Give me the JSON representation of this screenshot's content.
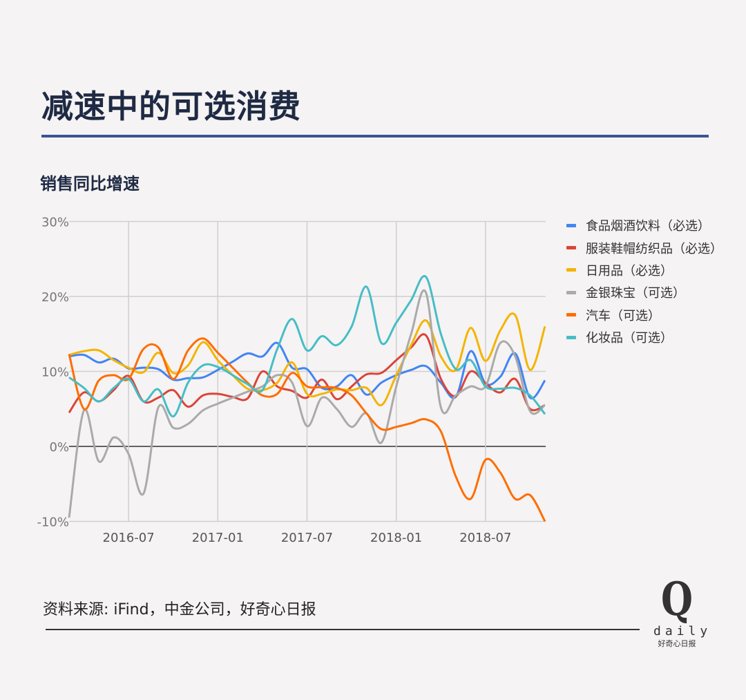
{
  "header": {
    "title": "减速中的可选消费",
    "subtitle": "销售同比增速"
  },
  "footer": {
    "source": "资料来源: iFind，中金公司，好奇心日报"
  },
  "logo": {
    "mark": "Q",
    "word": "daily",
    "cn": "好奇心日报"
  },
  "chart_data": {
    "type": "line",
    "title": "",
    "xlabel": "",
    "ylabel": "",
    "x_start": "2016-03",
    "x_end": "2018-11",
    "x_frequency": "monthly",
    "x_tick_labels": [
      "2016-07",
      "2017-01",
      "2017-07",
      "2018-01",
      "2018-07"
    ],
    "y_tick_labels": [
      "30%",
      "20%",
      "10%",
      "0%",
      "-10%"
    ],
    "ylim": [
      -10,
      30
    ],
    "grid": true,
    "legend_position": "right",
    "series": [
      {
        "name": "食品烟酒饮料（必选）",
        "color": "#4285f4",
        "values": [
          12,
          12.2,
          11.2,
          11.7,
          10.4,
          10.5,
          10.3,
          8.9,
          9.1,
          9.2,
          10.2,
          11.3,
          12.4,
          12,
          13.8,
          10.5,
          10.3,
          7.8,
          8,
          9.5,
          6.9,
          8.5,
          9.5,
          10.2,
          10.7,
          8.5,
          6.6,
          12.7,
          8.4,
          9.3,
          12.4,
          6.5,
          8.8
        ]
      },
      {
        "name": "服装鞋帽纺织品（必选）",
        "color": "#db4437",
        "values": [
          4.5,
          7.2,
          6,
          7.5,
          9.4,
          6,
          6.5,
          7.5,
          5.3,
          6.8,
          7,
          6.6,
          6.4,
          10,
          8,
          7.4,
          6.5,
          8.9,
          6.3,
          8,
          9.6,
          9.8,
          11.5,
          13.2,
          14.8,
          9,
          6.7,
          10,
          8.4,
          7.2,
          9,
          5,
          5.5
        ]
      },
      {
        "name": "日用品（必选）",
        "color": "#f4b400",
        "values": [
          12.2,
          12.7,
          12.8,
          11.5,
          10.5,
          9.9,
          12.5,
          9.8,
          10.8,
          13.9,
          11.5,
          9.5,
          7.7,
          7.5,
          8.5,
          11.2,
          7,
          7,
          7.6,
          7.5,
          7.8,
          5.5,
          9.5,
          13.5,
          16.8,
          12,
          10.2,
          15.8,
          11.4,
          15.5,
          17.5,
          10.2,
          16
        ]
      },
      {
        "name": "金银珠宝（可选）",
        "color": "#aaaaaa",
        "values": [
          -9.5,
          4.8,
          -2,
          1.2,
          -1,
          -6.3,
          5.2,
          2.5,
          3,
          4.8,
          5.7,
          6.5,
          7.3,
          8,
          9.5,
          8.5,
          2.7,
          6.5,
          5,
          2.6,
          4.4,
          0.5,
          8,
          15,
          20.5,
          5.2,
          6.8,
          8,
          8,
          13.8,
          12,
          4.7,
          5.5
        ]
      },
      {
        "name": "汽车（可选）",
        "color": "#ff6d00",
        "values": [
          12.3,
          5,
          8.8,
          9.5,
          9,
          13,
          13.2,
          9,
          12.8,
          14.4,
          12.5,
          10.5,
          8.5,
          6.8,
          7,
          9.8,
          8,
          7.9,
          7.8,
          6.8,
          4.4,
          2.3,
          2.6,
          3.1,
          3.6,
          2,
          -4,
          -7,
          -1.8,
          -3.5,
          -7,
          -6.5,
          -10
        ]
      },
      {
        "name": "化妆品（可选）",
        "color": "#46bdc6",
        "values": [
          9.2,
          7.8,
          6,
          7.8,
          9,
          6,
          7.6,
          4,
          8.5,
          10.8,
          10.6,
          9.5,
          8.3,
          7.5,
          13,
          17,
          12.8,
          14.7,
          13.5,
          16,
          21.3,
          13.8,
          16.5,
          19.5,
          22.6,
          15,
          10.3,
          11.5,
          8,
          7.7,
          7.8,
          6.8,
          4.3
        ]
      }
    ]
  }
}
